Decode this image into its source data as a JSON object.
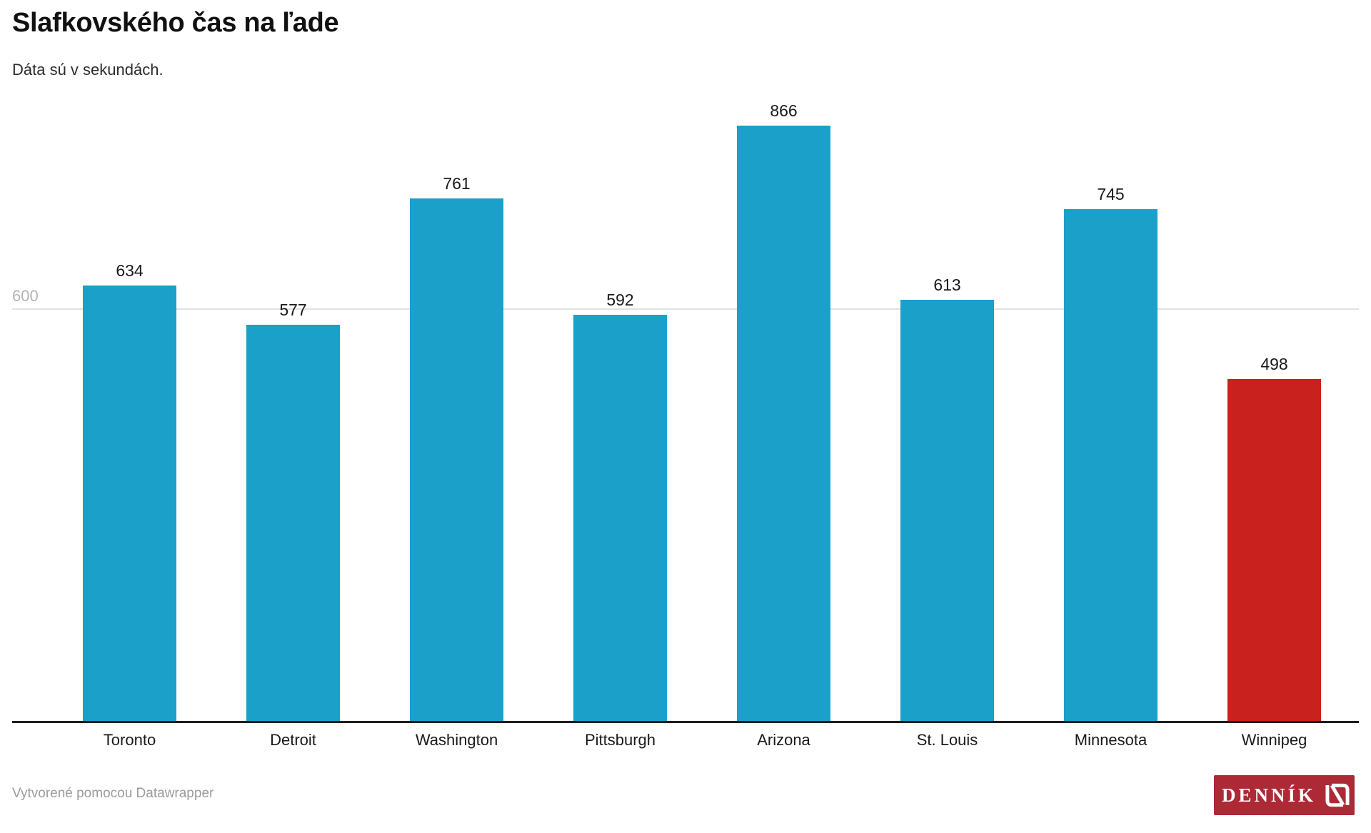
{
  "header": {
    "title": "Slafkovského čas na ľade",
    "subtitle": "Dáta sú v sekundách."
  },
  "chart_data": {
    "type": "bar",
    "title": "Slafkovského čas na ľade",
    "subtitle": "Dáta sú v sekundách.",
    "categories": [
      "Toronto",
      "Detroit",
      "Washington",
      "Pittsburgh",
      "Arizona",
      "St. Louis",
      "Minnesota",
      "Winnipeg"
    ],
    "values": [
      634,
      577,
      761,
      592,
      866,
      613,
      745,
      498
    ],
    "bar_colors": [
      "#1aa0c9",
      "#1aa0c9",
      "#1aa0c9",
      "#1aa0c9",
      "#1aa0c9",
      "#1aa0c9",
      "#1aa0c9",
      "#c9211e"
    ],
    "highlight_category": "Winnipeg",
    "value_labels": true,
    "xlabel": "",
    "ylabel": "",
    "yticks": [
      600
    ],
    "y_tick_label": "600",
    "ylim": [
      0,
      900
    ],
    "grid": "single horizontal gridline at 600",
    "legend": "none"
  },
  "colors": {
    "bar_default": "#1aa0c9",
    "bar_highlight": "#c9211e",
    "gridline": "#e2e2e2",
    "axis_line": "#1f1f1f",
    "tick_label": "#b3b3b3",
    "value_label": "#1a1a1a",
    "footer_text": "#9b9b9b",
    "logo_background": "#ae2936"
  },
  "footer": {
    "attribution": "Vytvorené pomocou Datawrapper",
    "logo_text": "DENNÍK",
    "logo_icon": "dennik-n-mark"
  }
}
